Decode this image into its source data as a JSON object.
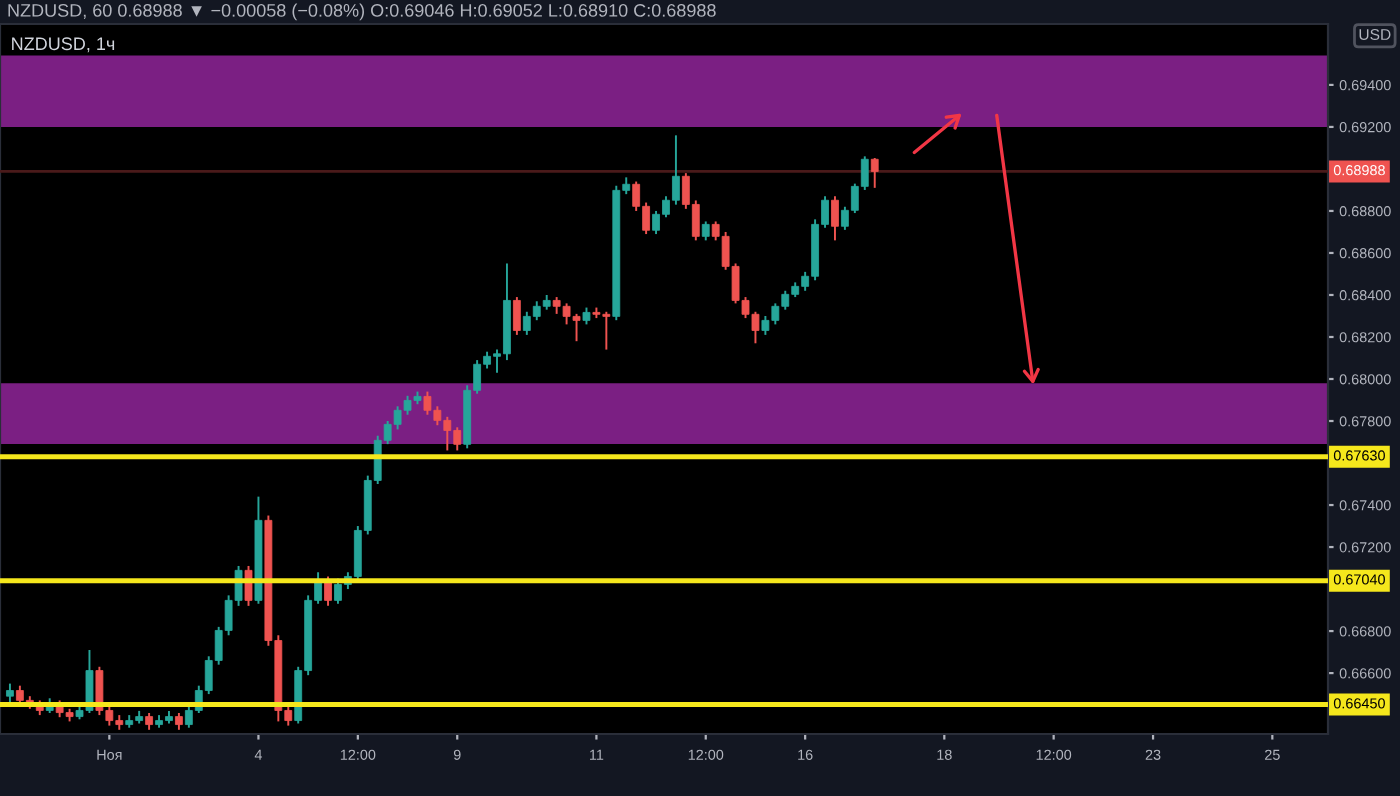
{
  "chart_data": {
    "type": "candlestick",
    "title": "NZDUSD, 60 0.68988 ▼ −0.00058 (−0.08%) O:0.69046 H:0.69052 L:0.68910 C:0.68988",
    "subtitle": "NZDUSD, 1ч",
    "annotations": [
      "USD"
    ],
    "categories": [
      null,
      null,
      null,
      null,
      null,
      null,
      null,
      null,
      null,
      null,
      "Ноя",
      null,
      null,
      null,
      null,
      null,
      null,
      null,
      null,
      null,
      null,
      null,
      null,
      null,
      null,
      "4",
      null,
      null,
      null,
      null,
      null,
      null,
      null,
      null,
      null,
      "12:00",
      null,
      null,
      null,
      null,
      null,
      null,
      null,
      null,
      null,
      "9",
      null,
      null,
      null,
      null,
      null,
      null,
      null,
      null,
      null,
      null,
      null,
      null,
      null,
      "11",
      null,
      null,
      null,
      null,
      null,
      null,
      null,
      null,
      null,
      null,
      "12:00",
      null,
      null,
      null,
      null,
      null,
      null,
      null,
      null,
      null,
      "16",
      null,
      null,
      null,
      null,
      null,
      null,
      null,
      null,
      null,
      null,
      null,
      null,
      null,
      "18",
      null,
      null,
      null,
      null,
      null,
      null,
      null,
      null,
      null,
      null,
      "12:00",
      null,
      null,
      null,
      null,
      null,
      null,
      null,
      null,
      null,
      "23",
      null,
      null,
      null,
      null,
      null,
      null,
      null,
      null,
      null,
      null,
      null,
      "25",
      null,
      null,
      null,
      null,
      null
    ],
    "ohlc": [
      [
        0.6649,
        0.6655,
        0.6646,
        0.66517
      ],
      [
        0.66517,
        0.6654,
        0.6645,
        0.6647
      ],
      [
        0.6647,
        0.6649,
        0.6643,
        0.66451
      ],
      [
        0.66451,
        0.6647,
        0.664,
        0.66422
      ],
      [
        0.66422,
        0.6648,
        0.6641,
        0.66451
      ],
      [
        0.66451,
        0.6647,
        0.6639,
        0.66412
      ],
      [
        0.66412,
        0.6643,
        0.6637,
        0.66393
      ],
      [
        0.66393,
        0.6645,
        0.6638,
        0.66422
      ],
      [
        0.66422,
        0.6671,
        0.6641,
        0.66612
      ],
      [
        0.66612,
        0.6663,
        0.664,
        0.66422
      ],
      [
        0.66422,
        0.6644,
        0.6635,
        0.66374
      ],
      [
        0.66374,
        0.664,
        0.6633,
        0.66355
      ],
      [
        0.66355,
        0.664,
        0.6634,
        0.66374
      ],
      [
        0.66374,
        0.6642,
        0.6636,
        0.66393
      ],
      [
        0.66393,
        0.6641,
        0.6633,
        0.66355
      ],
      [
        0.66355,
        0.664,
        0.6634,
        0.66374
      ],
      [
        0.66374,
        0.6642,
        0.6636,
        0.66393
      ],
      [
        0.66393,
        0.6641,
        0.6633,
        0.66355
      ],
      [
        0.66355,
        0.6645,
        0.6634,
        0.66422
      ],
      [
        0.66422,
        0.6654,
        0.6641,
        0.66517
      ],
      [
        0.66517,
        0.6668,
        0.665,
        0.6666
      ],
      [
        0.6666,
        0.6682,
        0.6664,
        0.66803
      ],
      [
        0.66803,
        0.6697,
        0.6678,
        0.66946
      ],
      [
        0.66946,
        0.6711,
        0.6692,
        0.67089
      ],
      [
        0.67089,
        0.6711,
        0.6692,
        0.66946
      ],
      [
        0.66946,
        0.6744,
        0.6693,
        0.67327
      ],
      [
        0.67327,
        0.6735,
        0.6673,
        0.66755
      ],
      [
        0.66755,
        0.6678,
        0.6637,
        0.66422
      ],
      [
        0.66422,
        0.6645,
        0.6635,
        0.66374
      ],
      [
        0.66374,
        0.6663,
        0.6636,
        0.66612
      ],
      [
        0.66612,
        0.6697,
        0.6659,
        0.66946
      ],
      [
        0.66946,
        0.6708,
        0.6693,
        0.67041
      ],
      [
        0.67041,
        0.6706,
        0.6692,
        0.66946
      ],
      [
        0.66946,
        0.6705,
        0.6693,
        0.67022
      ],
      [
        0.67022,
        0.6708,
        0.67,
        0.6706
      ],
      [
        0.6706,
        0.673,
        0.6704,
        0.67279
      ],
      [
        0.67279,
        0.6754,
        0.6726,
        0.67517
      ],
      [
        0.67517,
        0.6773,
        0.675,
        0.67708
      ],
      [
        0.67708,
        0.678,
        0.6769,
        0.67784
      ],
      [
        0.67784,
        0.6787,
        0.6776,
        0.67851
      ],
      [
        0.67851,
        0.6792,
        0.6783,
        0.67898
      ],
      [
        0.67898,
        0.6794,
        0.6788,
        0.67917
      ],
      [
        0.67917,
        0.6794,
        0.6783,
        0.67851
      ],
      [
        0.67851,
        0.6787,
        0.6778,
        0.67803
      ],
      [
        0.67803,
        0.6782,
        0.6766,
        0.67755
      ],
      [
        0.67755,
        0.6777,
        0.6766,
        0.67689
      ],
      [
        0.67689,
        0.6797,
        0.6767,
        0.67946
      ],
      [
        0.67946,
        0.6809,
        0.6793,
        0.6807
      ],
      [
        0.6807,
        0.6813,
        0.6805,
        0.68108
      ],
      [
        0.68108,
        0.6814,
        0.6803,
        0.6812
      ],
      [
        0.6812,
        0.6855,
        0.6809,
        0.68374
      ],
      [
        0.68374,
        0.6839,
        0.6821,
        0.68231
      ],
      [
        0.68231,
        0.6832,
        0.6821,
        0.68298
      ],
      [
        0.68298,
        0.6837,
        0.6828,
        0.68346
      ],
      [
        0.68346,
        0.684,
        0.6833,
        0.68374
      ],
      [
        0.68374,
        0.6839,
        0.6831,
        0.68346
      ],
      [
        0.68346,
        0.6836,
        0.6826,
        0.68298
      ],
      [
        0.68298,
        0.6831,
        0.6818,
        0.68279
      ],
      [
        0.68279,
        0.6834,
        0.6826,
        0.68317
      ],
      [
        0.68317,
        0.6834,
        0.6829,
        0.68308
      ],
      [
        0.68308,
        0.6832,
        0.6814,
        0.68298
      ],
      [
        0.68298,
        0.6892,
        0.6828,
        0.68898
      ],
      [
        0.68898,
        0.6896,
        0.6888,
        0.68927
      ],
      [
        0.68927,
        0.6894,
        0.688,
        0.68822
      ],
      [
        0.68822,
        0.6884,
        0.6869,
        0.68708
      ],
      [
        0.68708,
        0.688,
        0.6869,
        0.68784
      ],
      [
        0.68784,
        0.6887,
        0.6877,
        0.68851
      ],
      [
        0.68851,
        0.6916,
        0.6883,
        0.68965
      ],
      [
        0.68965,
        0.6898,
        0.6881,
        0.68831
      ],
      [
        0.68831,
        0.6885,
        0.6866,
        0.68679
      ],
      [
        0.68679,
        0.6875,
        0.6866,
        0.68736
      ],
      [
        0.68736,
        0.6875,
        0.6866,
        0.68679
      ],
      [
        0.68679,
        0.687,
        0.6852,
        0.68536
      ],
      [
        0.68536,
        0.6855,
        0.6836,
        0.68374
      ],
      [
        0.68374,
        0.6839,
        0.6829,
        0.68308
      ],
      [
        0.68308,
        0.6832,
        0.6817,
        0.68231
      ],
      [
        0.68231,
        0.683,
        0.6821,
        0.68279
      ],
      [
        0.68279,
        0.6836,
        0.6826,
        0.68346
      ],
      [
        0.68346,
        0.6842,
        0.6833,
        0.68403
      ],
      [
        0.68403,
        0.6846,
        0.6839,
        0.68441
      ],
      [
        0.68441,
        0.6851,
        0.6842,
        0.68489
      ],
      [
        0.68489,
        0.6876,
        0.6847,
        0.68736
      ],
      [
        0.68736,
        0.6887,
        0.6872,
        0.68851
      ],
      [
        0.68851,
        0.6887,
        0.6866,
        0.68727
      ],
      [
        0.68727,
        0.6882,
        0.6871,
        0.68803
      ],
      [
        0.68803,
        0.6893,
        0.6879,
        0.68917
      ],
      [
        0.68917,
        0.6906,
        0.689,
        0.69046
      ],
      [
        0.69046,
        0.69052,
        0.6891,
        0.68988
      ],
      null,
      null,
      null,
      null,
      null,
      null,
      null,
      null,
      null,
      null,
      null,
      null,
      null,
      null,
      null,
      null,
      null,
      null,
      null,
      null,
      null,
      null,
      null,
      null,
      null,
      null,
      null,
      null,
      null,
      null,
      null,
      null,
      null,
      null,
      null,
      null,
      null,
      null,
      null,
      null,
      null,
      null,
      null,
      null,
      null
    ],
    "colors": [
      "#26a69a",
      "#ef5350",
      "#ef5350",
      "#ef5350",
      "#26a69a",
      "#ef5350",
      "#ef5350",
      "#26a69a",
      "#26a69a",
      "#ef5350",
      "#ef5350",
      "#ef5350",
      "#26a69a",
      "#26a69a",
      "#ef5350",
      "#26a69a",
      "#26a69a",
      "#ef5350",
      "#26a69a",
      "#26a69a",
      "#26a69a",
      "#26a69a",
      "#26a69a",
      "#26a69a",
      "#ef5350",
      "#26a69a",
      "#ef5350",
      "#ef5350",
      "#ef5350",
      "#26a69a",
      "#26a69a",
      "#26a69a",
      "#ef5350",
      "#26a69a",
      "#26a69a",
      "#26a69a",
      "#26a69a",
      "#26a69a",
      "#26a69a",
      "#26a69a",
      "#26a69a",
      "#26a69a",
      "#ef5350",
      "#ef5350",
      "#ef5350",
      "#ef5350",
      "#26a69a",
      "#26a69a",
      "#26a69a",
      "#26a69a",
      "#26a69a",
      "#ef5350",
      "#26a69a",
      "#26a69a",
      "#26a69a",
      "#ef5350",
      "#ef5350",
      "#ef5350",
      "#26a69a",
      "#ef5350",
      "#ef5350",
      "#26a69a",
      "#26a69a",
      "#ef5350",
      "#ef5350",
      "#26a69a",
      "#26a69a",
      "#26a69a",
      "#ef5350",
      "#ef5350",
      "#26a69a",
      "#ef5350",
      "#ef5350",
      "#ef5350",
      "#ef5350",
      "#ef5350",
      "#26a69a",
      "#26a69a",
      "#26a69a",
      "#26a69a",
      "#26a69a",
      "#26a69a",
      "#26a69a",
      "#ef5350",
      "#26a69a",
      "#26a69a",
      "#26a69a",
      "#ef5350",
      null,
      null,
      null,
      null,
      null,
      null,
      null,
      null,
      null,
      null,
      null,
      null,
      null,
      null,
      null,
      null,
      null,
      null,
      null,
      null,
      null,
      null,
      null,
      null,
      null,
      null,
      null,
      null,
      null,
      null,
      null,
      null,
      null,
      null,
      null,
      null,
      null,
      null,
      null,
      null,
      null,
      null,
      null,
      null,
      null
    ],
    "ylim": [
      0.6631,
      0.6969
    ],
    "yticks": [
      {
        "value": 0.694,
        "label": "0.69400"
      },
      {
        "value": 0.692,
        "label": "0.69200"
      },
      {
        "value": 0.688,
        "label": "0.68800"
      },
      {
        "value": 0.686,
        "label": "0.68600"
      },
      {
        "value": 0.684,
        "label": "0.68400"
      },
      {
        "value": 0.682,
        "label": "0.68200"
      },
      {
        "value": 0.68,
        "label": "0.68000"
      },
      {
        "value": 0.678,
        "label": "0.67800"
      },
      {
        "value": 0.674,
        "label": "0.67400"
      },
      {
        "value": 0.672,
        "label": "0.67200"
      },
      {
        "value": 0.668,
        "label": "0.66800"
      },
      {
        "value": 0.666,
        "label": "0.66600"
      }
    ],
    "bands": [
      {
        "axis": "y",
        "from": 0.692,
        "to": 0.6954,
        "color": "#7b1f83"
      },
      {
        "axis": "y",
        "from": 0.6769,
        "to": 0.6798,
        "color": "#7b1f83"
      }
    ],
    "ref_lines": [
      {
        "axis": "y",
        "value": 0.6763,
        "label": "0.67630",
        "color": "#f5e71c"
      },
      {
        "axis": "y",
        "value": 0.6704,
        "label": "0.67040",
        "color": "#f5e71c"
      },
      {
        "axis": "y",
        "value": 0.6645,
        "label": "0.66450",
        "color": "#f5e71c"
      },
      {
        "axis": "y",
        "value": 0.68988,
        "label": "0.68988",
        "color": "#4a1a1a"
      }
    ],
    "grid": false
  }
}
